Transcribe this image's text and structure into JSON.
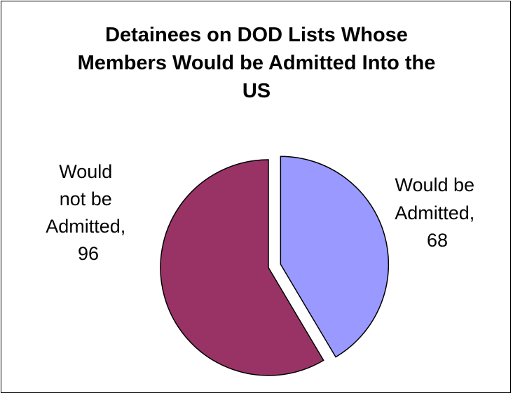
{
  "chart_data": {
    "type": "pie",
    "title_lines": [
      "Detainees on DOD Lists Whose",
      "Members Would be Admitted Into the",
      "US"
    ],
    "slices": [
      {
        "label_lines": [
          "Would be",
          "Admitted,",
          "68"
        ],
        "value": 68,
        "color": "#9999ff",
        "exploded": true
      },
      {
        "label_lines": [
          "Would",
          "not be",
          "Admitted,",
          "96"
        ],
        "value": 96,
        "color": "#993366",
        "exploded": false
      }
    ],
    "start_angle": "12 o'clock",
    "direction": "clockwise",
    "legend": "none"
  }
}
